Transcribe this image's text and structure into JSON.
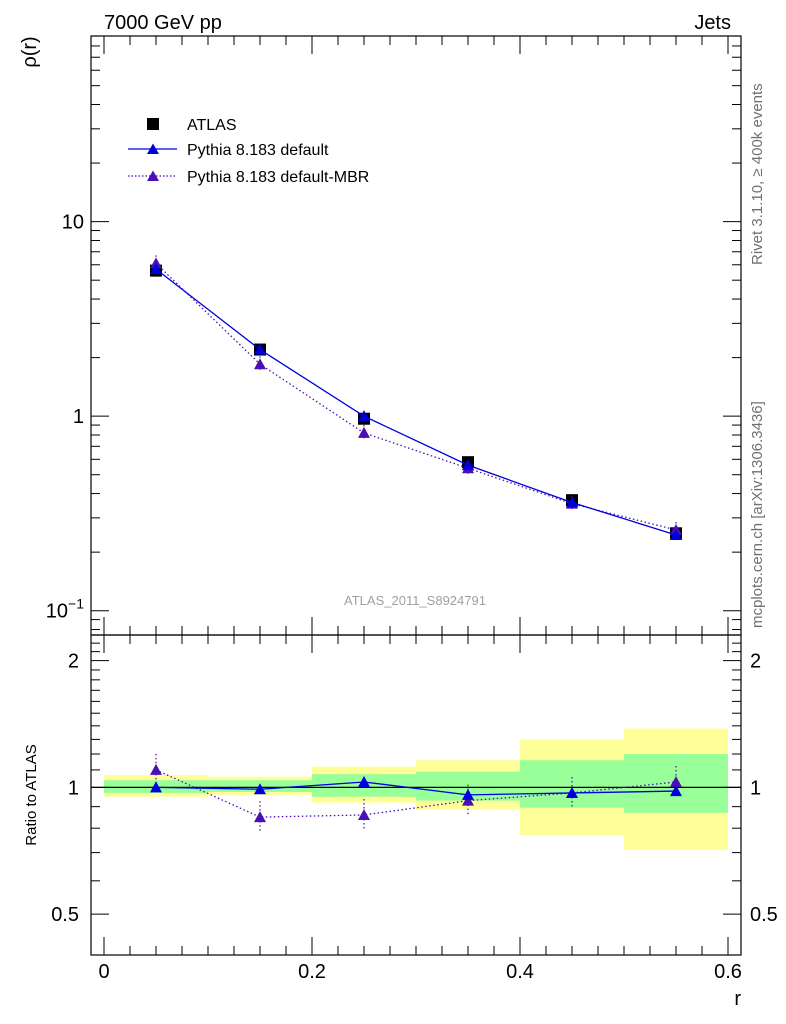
{
  "header": {
    "left_title": "7000 GeV pp",
    "right_title": "Jets"
  },
  "side_labels": {
    "rivet": "Rivet 3.1.10, ≥ 400k events",
    "source": "mcplots.cern.ch [arXiv:1306.3436]"
  },
  "analysis_label": "ATLAS_2011_S8924791",
  "colors": {
    "data": "#000000",
    "default": "#0000dd",
    "mbr": "#4b0fb4",
    "band_outer": "#ffff99",
    "band_inner": "#99ff99"
  },
  "chart_data": [
    {
      "name": "main",
      "type": "scatter",
      "xlabel": "",
      "ylabel": "ρ(r)",
      "yscale": "log",
      "xlim": [
        -0.0125,
        0.6125
      ],
      "ylim": [
        0.075,
        90
      ],
      "ytick_labels": [
        "10−1",
        "1",
        "10"
      ],
      "ytick_values": [
        0.1,
        1,
        10
      ],
      "legend": {
        "position": "top-left",
        "entries": [
          "ATLAS",
          "Pythia 8.183 default",
          "Pythia 8.183 default-MBR"
        ]
      },
      "x": [
        0.05,
        0.15,
        0.25,
        0.35,
        0.45,
        0.55
      ],
      "series": [
        {
          "name": "ATLAS",
          "style": "square-markers",
          "values": [
            5.6,
            2.2,
            0.97,
            0.58,
            0.37,
            0.25
          ]
        },
        {
          "name": "Pythia 8.183 default",
          "style": "solid-line-triangles",
          "values": [
            5.7,
            2.2,
            1.0,
            0.56,
            0.36,
            0.245
          ]
        },
        {
          "name": "Pythia 8.183 default-MBR",
          "style": "dotted-line-triangles",
          "values": [
            6.1,
            1.85,
            0.82,
            0.54,
            0.355,
            0.26
          ]
        }
      ]
    },
    {
      "name": "ratio",
      "type": "scatter",
      "xlabel": "r",
      "ylabel": "Ratio to ATLAS",
      "yscale": "log",
      "xlim": [
        -0.0125,
        0.6125
      ],
      "ylim": [
        0.4,
        2.3
      ],
      "ytick_labels": [
        "0.5",
        "1",
        "2"
      ],
      "ytick_values": [
        0.5,
        1,
        2
      ],
      "xtick_labels": [
        "0",
        "0.2",
        "0.4",
        "0.6"
      ],
      "xtick_values": [
        0,
        0.2,
        0.4,
        0.6
      ],
      "bins": [
        [
          0.0,
          0.1
        ],
        [
          0.1,
          0.2
        ],
        [
          0.2,
          0.3
        ],
        [
          0.3,
          0.4
        ],
        [
          0.4,
          0.5
        ],
        [
          0.5,
          0.6
        ]
      ],
      "band_outer": [
        [
          0.95,
          1.07
        ],
        [
          0.96,
          1.06
        ],
        [
          0.92,
          1.12
        ],
        [
          0.885,
          1.16
        ],
        [
          0.77,
          1.3
        ],
        [
          0.71,
          1.38
        ]
      ],
      "band_inner": [
        [
          0.97,
          1.04
        ],
        [
          0.975,
          1.04
        ],
        [
          0.95,
          1.075
        ],
        [
          0.93,
          1.09
        ],
        [
          0.895,
          1.16
        ],
        [
          0.87,
          1.2
        ]
      ],
      "x": [
        0.05,
        0.15,
        0.25,
        0.35,
        0.45,
        0.55
      ],
      "series": [
        {
          "name": "Pythia 8.183 default",
          "style": "solid-line-triangles",
          "values": [
            1.0,
            0.99,
            1.03,
            0.96,
            0.97,
            0.98
          ]
        },
        {
          "name": "Pythia 8.183 default-MBR",
          "style": "dotted-line-triangles",
          "values": [
            1.1,
            0.85,
            0.86,
            0.93,
            0.97,
            1.03
          ]
        }
      ]
    }
  ]
}
